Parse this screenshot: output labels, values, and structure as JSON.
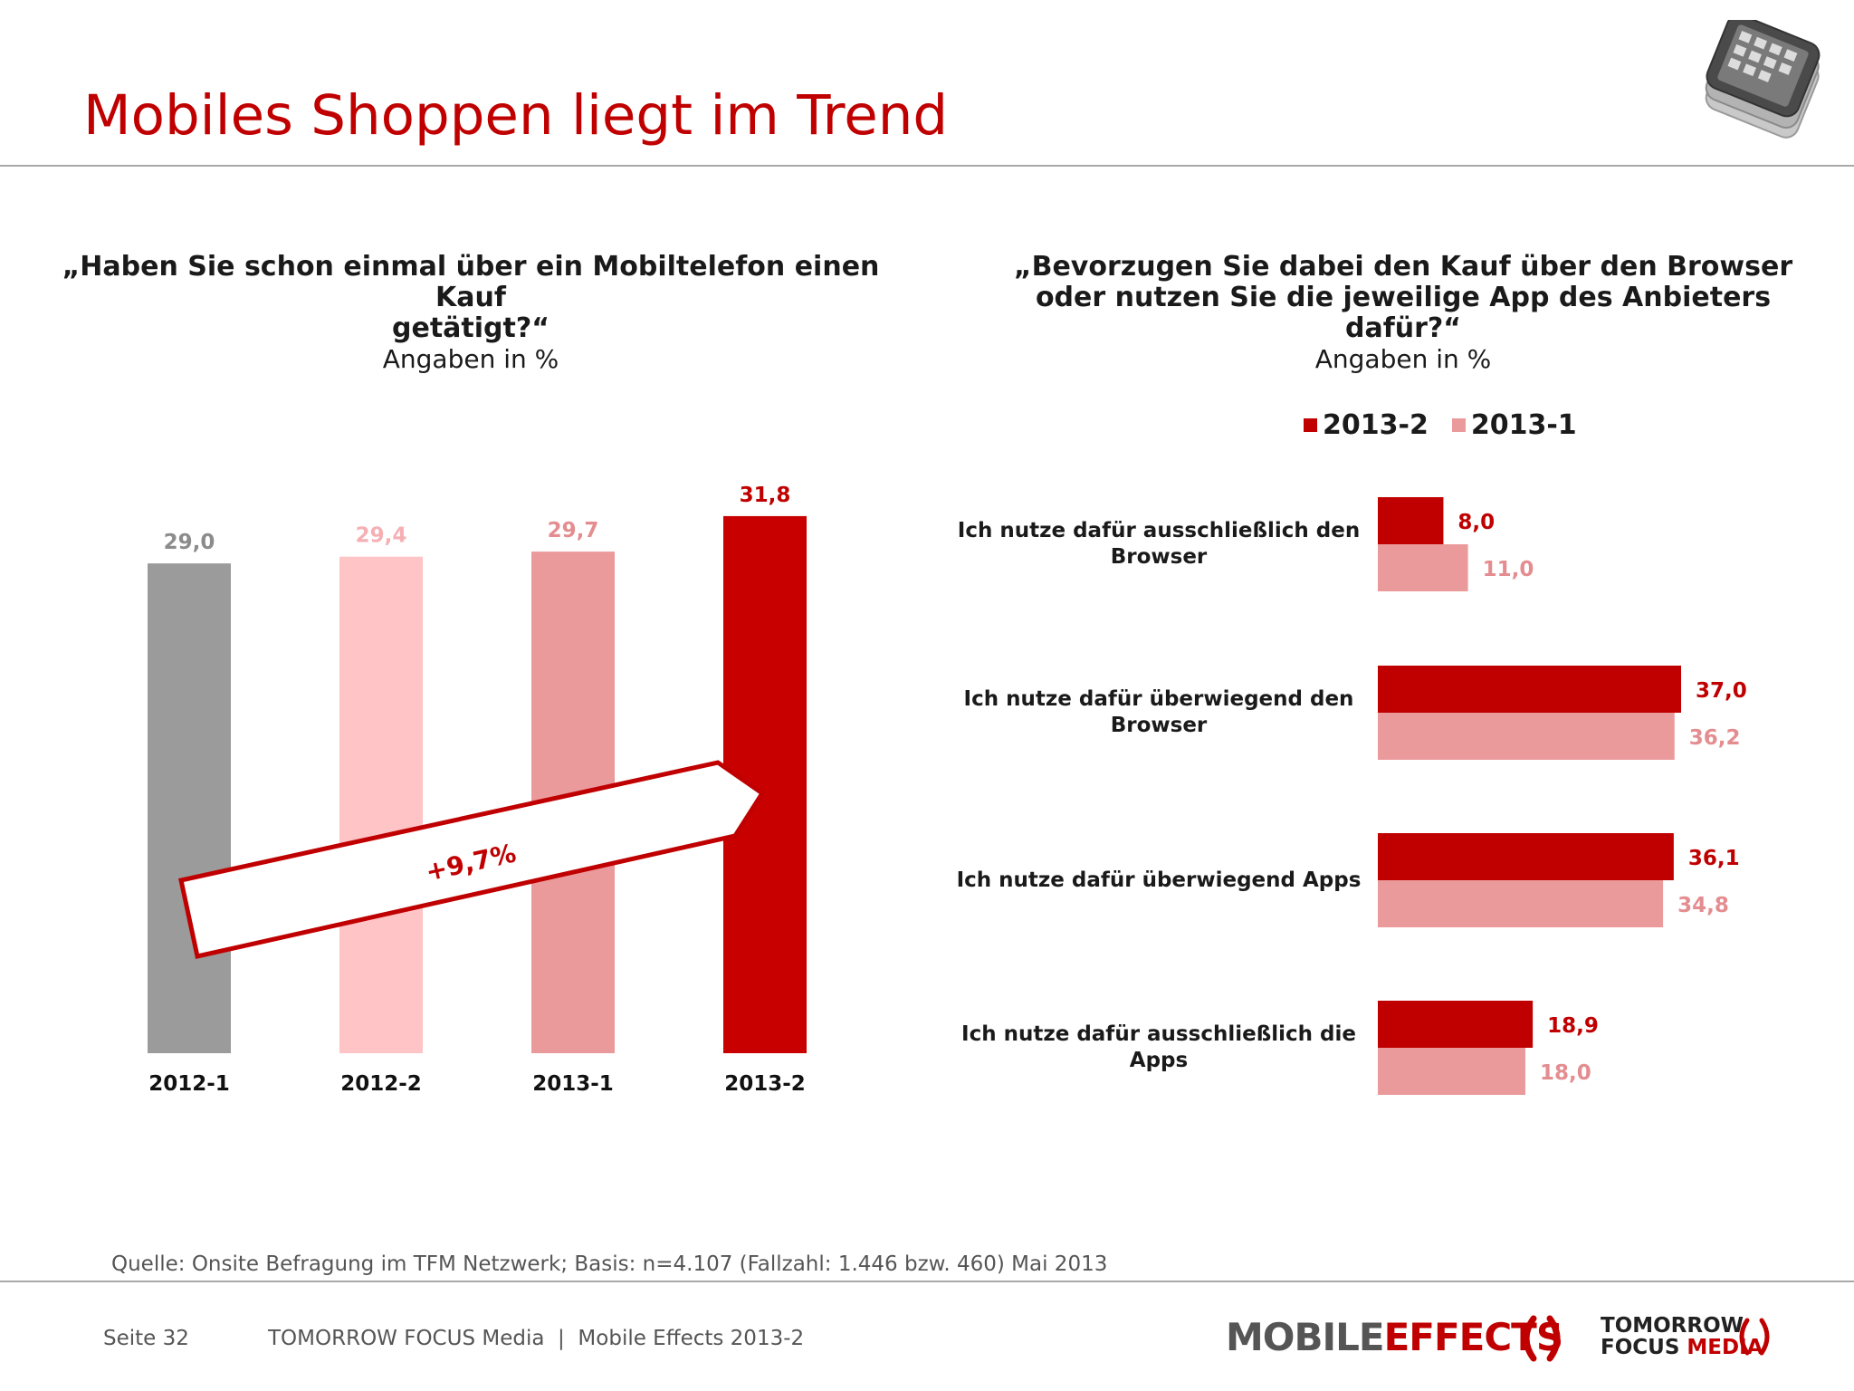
{
  "slide": {
    "title": "Mobiles Shoppen liegt im Trend",
    "source": "Quelle: Onsite Befragung im TFM Netzwerk; Basis: n=4.107 (Fallzahl: 1.446 bzw. 460) Mai 2013",
    "page": "Seite 32",
    "footer": "TOMORROW FOCUS Media  |  Mobile Effects 2013-2",
    "logo_mobile_a": "MOBILE",
    "logo_mobile_b": "EFFECTS",
    "logo_tf_line1": "TOMORROW",
    "logo_tf_line2a": "FOCUS",
    "logo_tf_line2b": "MEDIA",
    "phone_icon": "smartphone-stack-icon"
  },
  "chart_data": [
    {
      "type": "bar",
      "question_line1": "„Haben Sie schon einmal über ein Mobiltelefon einen Kauf",
      "question_line2": "getätigt?“",
      "unit_note": "Angaben in %",
      "categories": [
        "2012-1",
        "2012-2",
        "2013-1",
        "2013-2"
      ],
      "values": [
        29.0,
        29.4,
        29.7,
        31.8
      ],
      "value_labels": [
        "29,0",
        "29,4",
        "29,7",
        "31,8"
      ],
      "colors": [
        "#9b9b9b",
        "#ffc4c6",
        "#eb9a9c",
        "#c80000"
      ],
      "label_colors": [
        "#8c8c8c",
        "#f5b0b4",
        "#e48d90",
        "#c00000"
      ],
      "annotation": "+9,7%",
      "ylim": [
        0,
        32.6
      ]
    },
    {
      "type": "bar",
      "orientation": "horizontal",
      "question_line1": "„Bevorzugen Sie dabei den Kauf über den Browser",
      "question_line2": "oder nutzen Sie die jeweilige App des Anbieters",
      "question_line3": "dafür?“",
      "unit_note": "Angaben in %",
      "legend_position": "top",
      "categories": [
        [
          "Ich nutze dafür ausschließlich den",
          "Browser"
        ],
        [
          "Ich nutze dafür überwiegend den",
          "Browser"
        ],
        [
          "Ich nutze dafür überwiegend Apps"
        ],
        [
          "Ich nutze dafür ausschließlich die",
          "Apps"
        ]
      ],
      "series": [
        {
          "name": "2013-2",
          "color": "#c00000",
          "label_color": "#c00000",
          "values": [
            8.0,
            37.0,
            36.1,
            18.9
          ],
          "value_labels": [
            "8,0",
            "37,0",
            "36,1",
            "18,9"
          ]
        },
        {
          "name": "2013-1",
          "color": "#eb9a9c",
          "label_color": "#e48d90",
          "values": [
            11.0,
            36.2,
            34.8,
            18.0
          ],
          "value_labels": [
            "11,0",
            "36,2",
            "34,8",
            "18,0"
          ]
        }
      ],
      "xlim": [
        0,
        37
      ]
    }
  ]
}
